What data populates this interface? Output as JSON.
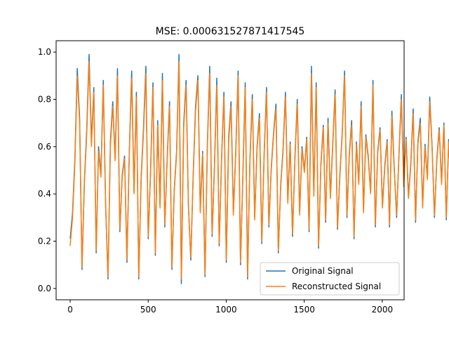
{
  "chart_data": {
    "type": "line",
    "title": "MSE: 0.000631527871417545",
    "xlabel": "",
    "ylabel": "",
    "xlim": [
      -90,
      2140
    ],
    "ylim": [
      -0.048,
      1.048
    ],
    "xticks": [
      0,
      500,
      1000,
      1500,
      2000
    ],
    "xtick_labels": [
      "0",
      "500",
      "1000",
      "1500",
      "2000"
    ],
    "yticks": [
      0.0,
      0.2,
      0.4,
      0.6,
      0.8,
      1.0
    ],
    "ytick_labels": [
      "0.0",
      "0.2",
      "0.4",
      "0.6",
      "0.8",
      "1.0"
    ],
    "grid": false,
    "legend_position": "lower-right",
    "x_range": [
      0,
      2047
    ],
    "series": [
      {
        "name": "Original Signal",
        "color": "#1f77b4",
        "x_step": 15.16,
        "values": [
          0.21,
          0.32,
          0.55,
          0.93,
          0.72,
          0.08,
          0.45,
          0.67,
          0.99,
          0.62,
          0.85,
          0.15,
          0.6,
          0.48,
          0.88,
          0.35,
          0.04,
          0.62,
          0.79,
          0.55,
          0.93,
          0.24,
          0.48,
          0.56,
          0.11,
          0.58,
          0.92,
          0.41,
          0.83,
          0.04,
          0.47,
          0.68,
          0.94,
          0.21,
          0.5,
          0.87,
          0.14,
          0.71,
          0.35,
          0.91,
          0.26,
          0.55,
          0.79,
          0.08,
          0.42,
          0.58,
          0.99,
          0.02,
          0.7,
          0.88,
          0.35,
          0.12,
          0.48,
          0.77,
          0.9,
          0.33,
          0.58,
          0.05,
          0.61,
          0.94,
          0.22,
          0.52,
          0.89,
          0.18,
          0.55,
          0.83,
          0.11,
          0.64,
          0.79,
          0.32,
          0.58,
          0.92,
          0.1,
          0.48,
          0.87,
          0.04,
          0.55,
          0.82,
          0.3,
          0.6,
          0.74,
          0.19,
          0.57,
          0.85,
          0.26,
          0.51,
          0.66,
          0.78,
          0.15,
          0.44,
          0.59,
          0.83,
          0.37,
          0.62,
          0.22,
          0.55,
          0.8,
          0.32,
          0.6,
          0.5,
          0.64,
          0.24,
          0.94,
          0.4,
          0.87,
          0.17,
          0.53,
          0.69,
          0.28,
          0.72,
          0.39,
          0.61,
          0.84,
          0.25,
          0.48,
          0.66,
          0.92,
          0.3,
          0.57,
          0.71,
          0.21,
          0.62,
          0.45,
          0.79,
          0.33,
          0.65,
          0.56,
          0.41,
          0.88,
          0.26,
          0.58,
          0.68,
          0.35,
          0.52,
          0.63,
          0.26,
          0.75,
          0.51,
          0.3,
          0.57,
          0.82,
          0.44,
          0.64,
          0.39,
          0.53,
          0.76,
          0.28,
          0.62,
          0.72,
          0.35,
          0.61,
          0.47,
          0.81,
          0.6,
          0.3,
          0.55,
          0.68,
          0.45,
          0.7,
          0.29,
          0.63,
          0.4,
          0.74,
          0.68
        ]
      },
      {
        "name": "Reconstructed Signal",
        "color": "#ff7f0e",
        "x_step": 15.16,
        "values": [
          0.18,
          0.3,
          0.53,
          0.9,
          0.7,
          0.09,
          0.44,
          0.65,
          0.96,
          0.6,
          0.83,
          0.16,
          0.58,
          0.47,
          0.86,
          0.34,
          0.05,
          0.6,
          0.77,
          0.54,
          0.9,
          0.25,
          0.47,
          0.55,
          0.12,
          0.57,
          0.89,
          0.4,
          0.81,
          0.05,
          0.46,
          0.66,
          0.91,
          0.22,
          0.49,
          0.85,
          0.15,
          0.69,
          0.34,
          0.88,
          0.27,
          0.54,
          0.77,
          0.09,
          0.41,
          0.57,
          0.96,
          0.04,
          0.68,
          0.86,
          0.34,
          0.13,
          0.47,
          0.75,
          0.88,
          0.32,
          0.57,
          0.06,
          0.6,
          0.91,
          0.23,
          0.51,
          0.86,
          0.19,
          0.54,
          0.81,
          0.12,
          0.62,
          0.77,
          0.31,
          0.57,
          0.9,
          0.11,
          0.47,
          0.85,
          0.05,
          0.54,
          0.8,
          0.29,
          0.59,
          0.72,
          0.2,
          0.56,
          0.83,
          0.27,
          0.5,
          0.65,
          0.76,
          0.16,
          0.43,
          0.58,
          0.81,
          0.36,
          0.61,
          0.23,
          0.54,
          0.78,
          0.31,
          0.59,
          0.49,
          0.63,
          0.25,
          0.91,
          0.39,
          0.85,
          0.18,
          0.52,
          0.68,
          0.29,
          0.7,
          0.38,
          0.6,
          0.82,
          0.26,
          0.47,
          0.65,
          0.9,
          0.31,
          0.56,
          0.69,
          0.22,
          0.61,
          0.44,
          0.77,
          0.32,
          0.64,
          0.55,
          0.4,
          0.86,
          0.27,
          0.57,
          0.67,
          0.34,
          0.51,
          0.62,
          0.27,
          0.73,
          0.5,
          0.31,
          0.56,
          0.8,
          0.43,
          0.63,
          0.38,
          0.52,
          0.74,
          0.29,
          0.61,
          0.7,
          0.34,
          0.6,
          0.46,
          0.79,
          0.59,
          0.31,
          0.54,
          0.67,
          0.44,
          0.69,
          0.3,
          0.62,
          0.41,
          0.72,
          0.67
        ]
      }
    ]
  }
}
